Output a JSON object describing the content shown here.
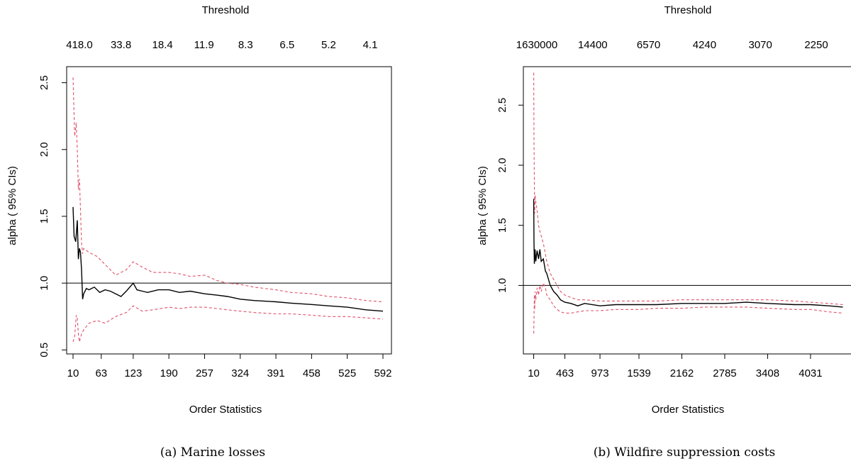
{
  "chart_data": [
    {
      "type": "line",
      "panel_caption": "(a) Marine losses",
      "top_axis_title": "Threshold",
      "top_ticks": [
        "418.0",
        "33.8",
        "18.4",
        "11.9",
        "8.3",
        "6.5",
        "5.2",
        "4.1"
      ],
      "xlabel": "Order Statistics",
      "ylabel": "alpha ( 95% CIs)",
      "xticks": [
        10,
        63,
        123,
        190,
        257,
        324,
        391,
        458,
        525,
        592
      ],
      "yticks": [
        "0.5",
        "1.0",
        "1.5",
        "2.0",
        "2.5"
      ],
      "xlim": [
        -2,
        608
      ],
      "ylim": [
        0.47,
        2.62
      ],
      "hline": 1.0,
      "series": [
        {
          "role": "estimate",
          "color": "#000000",
          "x": [
            10,
            12,
            15,
            18,
            20,
            22,
            24,
            26,
            28,
            30,
            35,
            40,
            50,
            60,
            70,
            80,
            90,
            100,
            110,
            123,
            130,
            140,
            150,
            170,
            190,
            210,
            230,
            257,
            280,
            300,
            324,
            350,
            391,
            420,
            458,
            490,
            525,
            560,
            592
          ],
          "y": [
            1.57,
            1.35,
            1.31,
            1.47,
            1.18,
            1.26,
            1.23,
            1.1,
            0.88,
            0.92,
            0.96,
            0.95,
            0.97,
            0.93,
            0.95,
            0.94,
            0.92,
            0.9,
            0.94,
            1.0,
            0.95,
            0.94,
            0.93,
            0.95,
            0.95,
            0.93,
            0.94,
            0.92,
            0.91,
            0.9,
            0.88,
            0.87,
            0.86,
            0.85,
            0.84,
            0.83,
            0.82,
            0.8,
            0.79
          ]
        },
        {
          "role": "upper-ci",
          "color": "#DF536B",
          "dash": true,
          "x": [
            10,
            13,
            16,
            18,
            20,
            22,
            24,
            26,
            28,
            30,
            40,
            55,
            70,
            90,
            110,
            123,
            140,
            160,
            190,
            210,
            230,
            257,
            280,
            300,
            324,
            350,
            391,
            420,
            458,
            490,
            525,
            560,
            592
          ],
          "y": [
            2.54,
            2.1,
            2.2,
            2.0,
            1.7,
            1.78,
            1.55,
            1.3,
            1.22,
            1.26,
            1.23,
            1.2,
            1.14,
            1.06,
            1.1,
            1.16,
            1.12,
            1.08,
            1.08,
            1.07,
            1.05,
            1.06,
            1.02,
            1.0,
            0.99,
            0.97,
            0.95,
            0.93,
            0.92,
            0.9,
            0.89,
            0.87,
            0.86
          ]
        },
        {
          "role": "lower-ci",
          "color": "#DF536B",
          "dash": true,
          "x": [
            10,
            13,
            16,
            18,
            20,
            22,
            26,
            30,
            40,
            55,
            70,
            90,
            110,
            123,
            140,
            160,
            190,
            210,
            230,
            257,
            280,
            300,
            324,
            350,
            391,
            420,
            458,
            490,
            525,
            560,
            592
          ],
          "y": [
            0.56,
            0.6,
            0.76,
            0.74,
            0.62,
            0.56,
            0.62,
            0.65,
            0.7,
            0.72,
            0.7,
            0.75,
            0.78,
            0.83,
            0.79,
            0.8,
            0.82,
            0.81,
            0.82,
            0.82,
            0.81,
            0.8,
            0.79,
            0.78,
            0.77,
            0.77,
            0.76,
            0.75,
            0.75,
            0.74,
            0.73
          ]
        }
      ]
    },
    {
      "type": "line",
      "panel_caption": "(b) Wildfire suppression costs",
      "top_axis_title": "Threshold",
      "top_ticks": [
        "1630000",
        "14400",
        "6570",
        "4240",
        "3070",
        "2250"
      ],
      "xlabel": "Order Statistics",
      "ylabel": "alpha ( 95% CIs)",
      "xticks": [
        10,
        463,
        973,
        1539,
        2162,
        2785,
        3408,
        4031
      ],
      "yticks": [
        "1.0",
        "1.5",
        "2.0",
        "2.5"
      ],
      "xlim": [
        -140,
        4660
      ],
      "ylim": [
        0.43,
        2.82
      ],
      "hline": 1.0,
      "series": [
        {
          "role": "estimate",
          "color": "#000000",
          "x": [
            10,
            15,
            20,
            30,
            40,
            60,
            80,
            100,
            120,
            150,
            180,
            200,
            250,
            300,
            350,
            400,
            463,
            550,
            650,
            750,
            973,
            1200,
            1539,
            1800,
            2162,
            2500,
            2785,
            3100,
            3408,
            3800,
            4031,
            4300,
            4500
          ],
          "y": [
            1.72,
            1.35,
            1.18,
            1.3,
            1.2,
            1.29,
            1.22,
            1.3,
            1.2,
            1.22,
            1.12,
            1.1,
            1.0,
            0.95,
            0.92,
            0.88,
            0.86,
            0.85,
            0.83,
            0.85,
            0.83,
            0.84,
            0.84,
            0.84,
            0.85,
            0.85,
            0.85,
            0.86,
            0.85,
            0.84,
            0.84,
            0.83,
            0.82
          ]
        },
        {
          "role": "upper-ci",
          "color": "#DF536B",
          "dash": true,
          "x": [
            10,
            15,
            20,
            25,
            30,
            40,
            60,
            80,
            100,
            150,
            200,
            250,
            300,
            350,
            400,
            463,
            550,
            650,
            750,
            973,
            1200,
            1539,
            1800,
            2162,
            2500,
            2785,
            3100,
            3408,
            3800,
            4031,
            4300,
            4500
          ],
          "y": [
            2.77,
            2.2,
            1.84,
            1.6,
            1.75,
            1.7,
            1.62,
            1.5,
            1.45,
            1.35,
            1.2,
            1.1,
            1.05,
            1.0,
            0.95,
            0.92,
            0.9,
            0.88,
            0.88,
            0.87,
            0.87,
            0.87,
            0.87,
            0.88,
            0.88,
            0.88,
            0.88,
            0.88,
            0.87,
            0.86,
            0.85,
            0.84
          ]
        },
        {
          "role": "lower-ci",
          "color": "#DF536B",
          "dash": true,
          "x": [
            10,
            15,
            20,
            25,
            30,
            40,
            60,
            80,
            100,
            120,
            150,
            180,
            200,
            250,
            300,
            350,
            400,
            463,
            550,
            650,
            750,
            973,
            1200,
            1539,
            1800,
            2162,
            2500,
            2785,
            3100,
            3408,
            3800,
            4031,
            4300,
            4500
          ],
          "y": [
            0.6,
            0.72,
            0.92,
            0.8,
            0.95,
            0.88,
            0.98,
            0.92,
            1.0,
            0.95,
            1.02,
            0.98,
            0.92,
            0.88,
            0.83,
            0.8,
            0.78,
            0.77,
            0.77,
            0.78,
            0.79,
            0.79,
            0.8,
            0.8,
            0.81,
            0.81,
            0.82,
            0.82,
            0.82,
            0.81,
            0.8,
            0.8,
            0.78,
            0.77
          ]
        }
      ]
    }
  ]
}
